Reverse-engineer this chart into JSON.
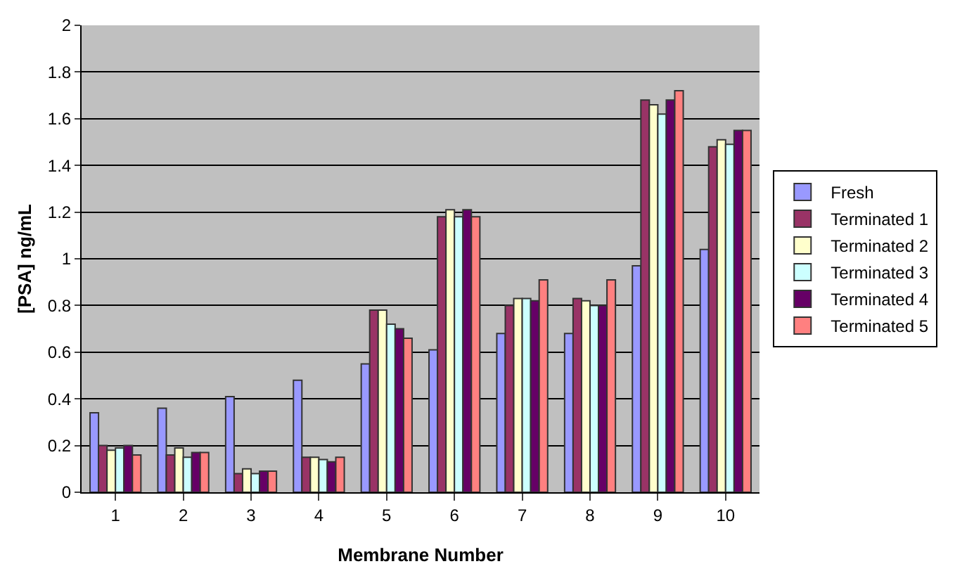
{
  "chart_data": {
    "type": "bar",
    "xlabel": "Membrane Number",
    "ylabel": "[PSA] ng/mL",
    "categories": [
      "1",
      "2",
      "3",
      "4",
      "5",
      "6",
      "7",
      "8",
      "9",
      "10"
    ],
    "series": [
      {
        "name": "Fresh",
        "color": "#9999ff",
        "values": [
          0.34,
          0.36,
          0.41,
          0.48,
          0.55,
          0.61,
          0.68,
          0.68,
          0.97,
          1.04
        ]
      },
      {
        "name": "Terminated 1",
        "color": "#993366",
        "values": [
          0.2,
          0.16,
          0.08,
          0.15,
          0.78,
          1.18,
          0.8,
          0.83,
          1.68,
          1.48
        ]
      },
      {
        "name": "Terminated 2",
        "color": "#ffffcc",
        "values": [
          0.18,
          0.19,
          0.1,
          0.15,
          0.78,
          1.21,
          0.83,
          0.82,
          1.66,
          1.51
        ]
      },
      {
        "name": "Terminated 3",
        "color": "#ccffff",
        "values": [
          0.19,
          0.15,
          0.08,
          0.14,
          0.72,
          1.18,
          0.83,
          0.8,
          1.62,
          1.49
        ]
      },
      {
        "name": "Terminated 4",
        "color": "#660066",
        "values": [
          0.2,
          0.17,
          0.09,
          0.13,
          0.7,
          1.21,
          0.82,
          0.8,
          1.68,
          1.55
        ]
      },
      {
        "name": "Terminated 5",
        "color": "#ff8080",
        "values": [
          0.16,
          0.17,
          0.09,
          0.15,
          0.66,
          1.18,
          0.91,
          0.91,
          1.72,
          1.55
        ]
      }
    ],
    "ylim": [
      0,
      2
    ],
    "yticks": [
      0,
      0.2,
      0.4,
      0.6,
      0.8,
      1,
      1.2,
      1.4,
      1.6,
      1.8,
      2
    ],
    "grid": "y",
    "legend": "right"
  }
}
